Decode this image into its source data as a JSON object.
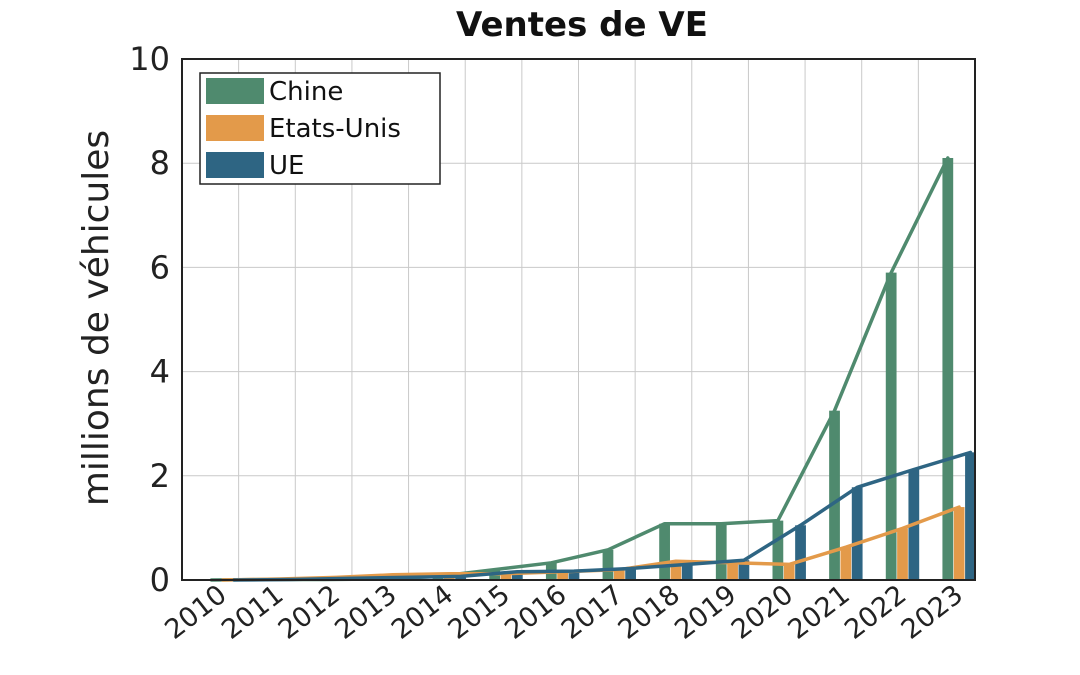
{
  "chart_data": {
    "type": "bar",
    "title": "Ventes de VE",
    "xlabel": "",
    "ylabel": "millions de véhicules",
    "ylim": [
      0,
      10
    ],
    "yticks": [
      "0",
      "2",
      "4",
      "6",
      "8",
      "10"
    ],
    "categories": [
      "2010",
      "2011",
      "2012",
      "2013",
      "2014",
      "2015",
      "2016",
      "2017",
      "2018",
      "2019",
      "2020",
      "2021",
      "2022",
      "2023"
    ],
    "series": [
      {
        "name": "Chine",
        "color": "#4f8a6e",
        "values": [
          0.0,
          0.01,
          0.01,
          0.02,
          0.07,
          0.2,
          0.33,
          0.58,
          1.08,
          1.08,
          1.14,
          3.25,
          5.9,
          8.1
        ]
      },
      {
        "name": "Etats-Unis",
        "color": "#e39a4a",
        "values": [
          0.0,
          0.02,
          0.05,
          0.1,
          0.12,
          0.12,
          0.16,
          0.2,
          0.36,
          0.33,
          0.3,
          0.63,
          0.99,
          1.4
        ]
      },
      {
        "name": "UE",
        "color": "#2e6583",
        "values": [
          0.0,
          0.01,
          0.03,
          0.05,
          0.07,
          0.16,
          0.17,
          0.22,
          0.3,
          0.38,
          1.05,
          1.78,
          2.12,
          2.45
        ]
      }
    ],
    "lines_overlay": true,
    "grid": true,
    "legend_position": "top-left"
  }
}
